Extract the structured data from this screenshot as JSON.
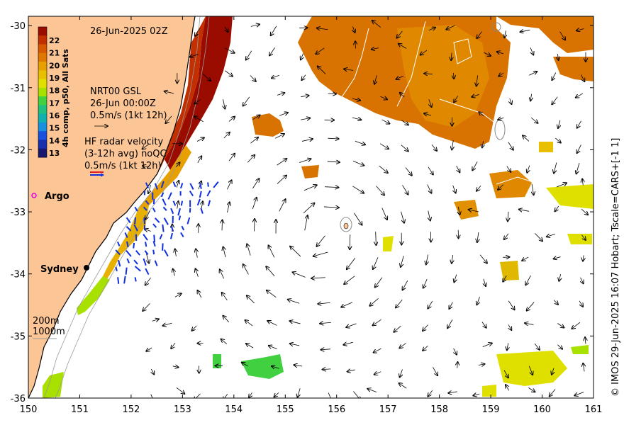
{
  "title": "26-Jun-2025 02Z",
  "credit": "© IMOS 29-Jun-2025 16:07 Hobart; Tscale=CARS+[-1 1]",
  "axes": {
    "x_ticks": [
      "150",
      "151",
      "152",
      "153",
      "154",
      "155",
      "156",
      "157",
      "158",
      "159",
      "160",
      "161"
    ],
    "y_ticks": [
      "-30",
      "-31",
      "-32",
      "-33",
      "-34",
      "-35",
      "-36"
    ],
    "xlim": [
      150,
      161
    ],
    "ylim": [
      -36,
      -29.85
    ]
  },
  "colorbar": {
    "label": "4h comp, p50, All Sats",
    "ticks": [
      "22",
      "21",
      "20",
      "19",
      "18",
      "17",
      "16",
      "15",
      "14",
      "13"
    ],
    "colors": [
      "#9b0c00",
      "#c22f00",
      "#d85800",
      "#e07800",
      "#e8a000",
      "#e8c000",
      "#e0e000",
      "#a8e000",
      "#40d040",
      "#20c080",
      "#10b0b0",
      "#1890e0",
      "#1850e0",
      "#1830b0",
      "#181870"
    ]
  },
  "legend": {
    "gsl": [
      "NRT00 GSL",
      "26-Jun 00:00Z",
      "0.5m/s (1kt 12h)"
    ],
    "hf_radar": [
      "HF radar velocity",
      "(3-12h avg) noQC",
      "0.5m/s (1kt 12h)"
    ],
    "argo": "Argo",
    "sydney": "Sydney",
    "isobaths": [
      "200m",
      "1000m"
    ]
  },
  "colors": {
    "land": "#fcc596",
    "ocean": "#ffffff",
    "hf_arrow": "#1030e0",
    "argo": "#e000e0"
  }
}
